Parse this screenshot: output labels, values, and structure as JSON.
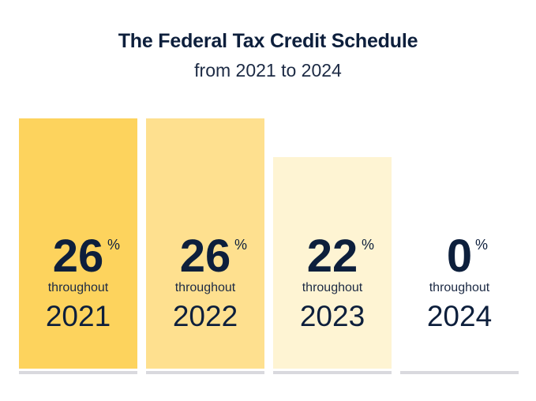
{
  "chart_data": {
    "type": "bar",
    "title": "The Federal Tax Credit Schedule",
    "subtitle": "from 2021 to 2024",
    "categories": [
      "2021",
      "2022",
      "2023",
      "2024"
    ],
    "values": [
      26,
      26,
      22,
      0
    ],
    "unit": "%",
    "period_word": "throughout",
    "ylim": [
      0,
      26
    ],
    "colors": [
      "#fdd35d",
      "#fee08f",
      "#fef4d3",
      "#ffffff"
    ],
    "baseline_color": "#d9d9de",
    "grid": false
  }
}
